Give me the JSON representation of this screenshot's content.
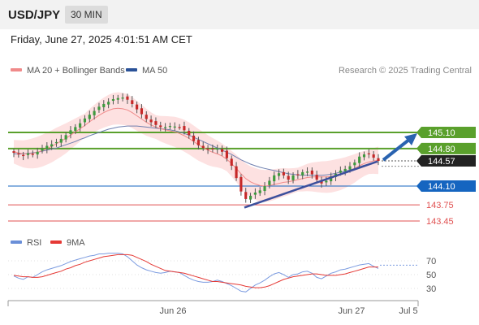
{
  "header": {
    "symbol": "USD/JPY",
    "timeframe": "30 MIN",
    "datetime": "Friday, June 27, 2025 4:01:51 AM CET"
  },
  "legend": {
    "ma20": {
      "label": "MA 20 + Bollinger Bands",
      "color": "#f08a8a"
    },
    "ma50": {
      "label": "MA 50",
      "color": "#2a5298"
    },
    "credit": "Research © 2025 Trading Central"
  },
  "chart_data": [
    {
      "type": "candlestick",
      "y_range": [
        143.3,
        145.3
      ],
      "resistance_levels": [
        {
          "value": 145.1,
          "label": "145.10",
          "color": "#5aa02c"
        },
        {
          "value": 144.8,
          "label": "144.80",
          "color": "#5aa02c"
        }
      ],
      "support_levels": [
        {
          "value": 144.1,
          "label": "144.10",
          "color": "#1565c0"
        },
        {
          "value": 143.75,
          "label": "143.75",
          "color": "#e05050"
        },
        {
          "value": 143.45,
          "label": "143.45",
          "color": "#e05050"
        }
      ],
      "last_price": {
        "value": 144.57,
        "label": "144.57"
      },
      "trendline": {
        "from_index": 0,
        "to_index": 0,
        "from_value": 143.7,
        "to_value": 144.56
      },
      "candles_close": [
        144.72,
        144.69,
        144.66,
        144.71,
        144.7,
        144.74,
        144.8,
        144.85,
        144.88,
        144.92,
        144.98,
        145.05,
        145.14,
        145.2,
        145.27,
        145.36,
        145.43,
        145.5,
        145.58,
        145.63,
        145.67,
        145.72,
        145.74,
        145.75,
        145.71,
        145.63,
        145.53,
        145.44,
        145.35,
        145.29,
        145.24,
        145.2,
        145.2,
        145.22,
        145.21,
        145.2,
        145.14,
        145.05,
        144.94,
        144.86,
        144.81,
        144.78,
        144.79,
        144.8,
        144.74,
        144.62,
        144.48,
        144.25,
        144.0,
        143.86,
        143.92,
        143.98,
        144.02,
        144.1,
        144.2,
        144.3,
        144.34,
        144.3,
        144.22,
        144.3,
        144.31,
        144.36,
        144.37,
        144.32,
        144.22,
        144.15,
        144.2,
        144.28,
        144.33,
        144.39,
        144.42,
        144.47,
        144.54,
        144.65,
        144.69,
        144.7,
        144.63,
        144.57
      ],
      "ma20": [
        144.74,
        144.72,
        144.7,
        144.7,
        144.71,
        144.73,
        144.76,
        144.8,
        144.84,
        144.89,
        144.94,
        144.99,
        145.05,
        145.11,
        145.17,
        145.23,
        145.3,
        145.36,
        145.42,
        145.47,
        145.51,
        145.54,
        145.55,
        145.54,
        145.52,
        145.47,
        145.41,
        145.35,
        145.29,
        145.24,
        145.2,
        145.17,
        145.15,
        145.13,
        145.11,
        145.08,
        145.04,
        144.99,
        144.93,
        144.87,
        144.82,
        144.77,
        144.73,
        144.7,
        144.66,
        144.6,
        144.52,
        144.43,
        144.33,
        144.24,
        144.18,
        144.14,
        144.11,
        144.1,
        144.11,
        144.13,
        144.15,
        144.17,
        144.18,
        144.2,
        144.22,
        144.24,
        144.26,
        144.27,
        144.27,
        144.27,
        144.27,
        144.28,
        144.3,
        144.32,
        144.35,
        144.39,
        144.43,
        144.48,
        144.52,
        144.55,
        144.57,
        144.58
      ],
      "ma50": [
        144.7,
        144.7,
        144.7,
        144.71,
        144.72,
        144.73,
        144.75,
        144.77,
        144.79,
        144.81,
        144.84,
        144.87,
        144.9,
        144.93,
        144.97,
        145.0,
        145.04,
        145.07,
        145.1,
        145.13,
        145.16,
        145.18,
        145.2,
        145.21,
        145.22,
        145.22,
        145.22,
        145.21,
        145.2,
        145.19,
        145.18,
        145.17,
        145.16,
        145.15,
        145.13,
        145.11,
        145.08,
        145.05,
        145.01,
        144.97,
        144.93,
        144.89,
        144.85,
        144.81,
        144.77,
        144.73,
        144.69,
        144.64,
        144.59,
        144.55,
        144.51,
        144.48,
        144.45,
        144.43,
        144.41,
        144.39,
        144.37,
        144.35,
        144.33,
        144.32,
        144.31,
        144.3,
        144.3,
        144.3,
        144.3,
        144.3,
        144.31,
        144.32,
        144.34,
        144.36,
        144.38,
        144.4,
        144.43,
        144.46,
        144.49,
        144.51,
        144.53,
        144.55
      ]
    },
    {
      "type": "line",
      "legend": [
        {
          "name": "RSI",
          "color": "#6a8fd8"
        },
        {
          "name": "9MA",
          "color": "#e53935"
        }
      ],
      "y_ticks": [
        "70",
        "50",
        "30"
      ],
      "y_range": [
        20,
        85
      ],
      "rsi": [
        48,
        45,
        43,
        47,
        46,
        50,
        54,
        57,
        59,
        61,
        63,
        66,
        69,
        71,
        73,
        75,
        77,
        78,
        80,
        80,
        81,
        81,
        81,
        80,
        76,
        70,
        64,
        60,
        57,
        55,
        53,
        52,
        53,
        55,
        54,
        53,
        49,
        45,
        42,
        40,
        39,
        39,
        40,
        42,
        40,
        37,
        34,
        30,
        26,
        25,
        30,
        35,
        38,
        42,
        47,
        51,
        53,
        50,
        46,
        50,
        51,
        54,
        55,
        52,
        46,
        44,
        48,
        52,
        54,
        57,
        58,
        60,
        62,
        64,
        65,
        66,
        62,
        59
      ],
      "ma9": [
        49,
        48,
        47,
        47,
        46,
        46,
        47,
        49,
        51,
        53,
        55,
        58,
        60,
        63,
        65,
        68,
        70,
        72,
        74,
        76,
        77,
        78,
        79,
        79,
        79,
        78,
        75,
        72,
        69,
        65,
        62,
        59,
        56,
        55,
        54,
        53,
        52,
        50,
        48,
        46,
        44,
        42,
        40,
        40,
        39,
        38,
        37,
        36,
        35,
        33,
        32,
        31,
        31,
        32,
        34,
        37,
        40,
        43,
        45,
        47,
        48,
        49,
        50,
        51,
        51,
        50,
        49,
        49,
        49,
        50,
        51,
        53,
        55,
        57,
        59,
        61,
        61,
        61
      ],
      "x_ticks": [
        "Jun 26",
        "Jun 27",
        "Jul 5"
      ]
    }
  ]
}
